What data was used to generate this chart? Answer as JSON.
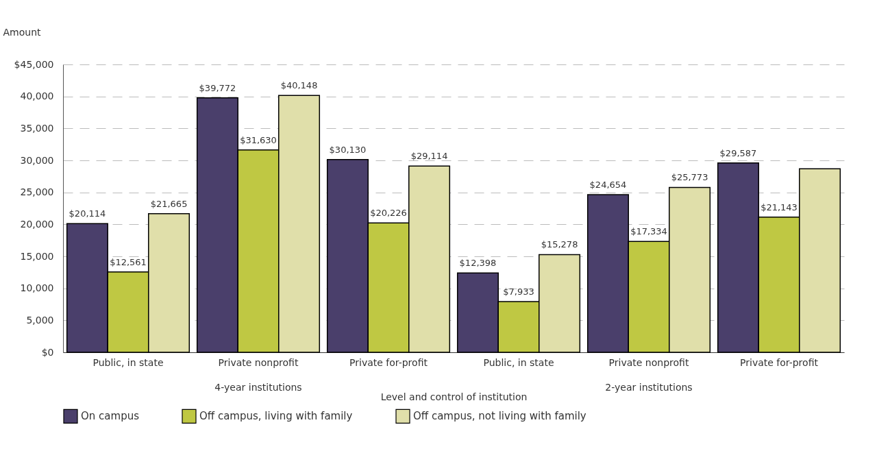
{
  "chart_data": {
    "type": "bar",
    "xlabel": "Level and control of institution",
    "ylabel": "Amount",
    "categories": [
      "Public, in state",
      "Private nonprofit",
      "Private for-profit",
      "Public, in state",
      "Private nonprofit",
      "Private for-profit"
    ],
    "series": [
      {
        "name": "On campus",
        "color": "#4a3f6b",
        "values": [
          20114,
          39772,
          30130,
          12398,
          24654,
          29587
        ],
        "value_labels": [
          "$20,114",
          "$39,772",
          "$30,130",
          "$12,398",
          "$24,654",
          "$29,587"
        ]
      },
      {
        "name": "Off campus, living with family",
        "color": "#bfc843",
        "values": [
          12561,
          31630,
          20226,
          7933,
          17334,
          21143
        ],
        "value_labels": [
          "$12,561",
          "$31,630",
          "$20,226",
          "$7,933",
          "$17,334",
          "$21,143"
        ]
      },
      {
        "name": "Off campus, not living with family",
        "color": "#e0dfaa",
        "values": [
          21665,
          40148,
          29114,
          15278,
          25773,
          28700
        ],
        "value_labels": [
          "$21,665",
          "$40,148",
          "$29,114",
          "$15,278",
          "$25,773",
          null
        ]
      }
    ],
    "ylim": [
      0,
      45000
    ],
    "yticks": [
      {
        "value": 0,
        "label": "$0"
      },
      {
        "value": 5000,
        "label": "5,000"
      },
      {
        "value": 10000,
        "label": "10,000"
      },
      {
        "value": 15000,
        "label": "15,000"
      },
      {
        "value": 20000,
        "label": "20,000"
      },
      {
        "value": 25000,
        "label": "25,000"
      },
      {
        "value": 30000,
        "label": "30,000"
      },
      {
        "value": 35000,
        "label": "35,000"
      },
      {
        "value": 40000,
        "label": "40,000"
      },
      {
        "value": 45000,
        "label": "$45,000"
      }
    ],
    "grid": "y",
    "legend": "bottom",
    "annotations": [
      "4-year institutions",
      "2-year institutions"
    ]
  }
}
